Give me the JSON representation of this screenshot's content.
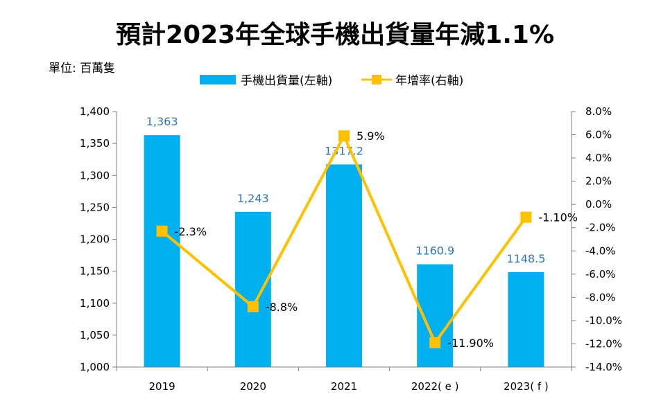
{
  "chart_data": {
    "type": "bar",
    "title": "預計2023年全球手機出貨量年減1.1%",
    "unit_label": "單位: 百萬隻",
    "categories": [
      "2019",
      "2020",
      "2021",
      "2022( e )",
      "2023( f )"
    ],
    "series": [
      {
        "name": "手機出貨量(左軸)",
        "kind": "bar",
        "axis": "left",
        "values": [
          1363,
          1243,
          1317.2,
          1160.9,
          1148.5
        ],
        "labels": [
          "1,363",
          "1,243",
          "1317.2",
          "1160.9",
          "1148.5"
        ],
        "color": "#00B0F0"
      },
      {
        "name": "年增率(右軸)",
        "kind": "line",
        "axis": "right",
        "values": [
          -2.3,
          -8.8,
          5.9,
          -11.9,
          -1.1
        ],
        "labels": [
          "-2.3%",
          "-8.8%",
          "5.9%",
          "-11.90%",
          "-1.10%"
        ],
        "color": "#FFC000"
      }
    ],
    "left_axis": {
      "ylim": [
        1000,
        1400
      ],
      "ticks": [
        "1,000",
        "1,050",
        "1,100",
        "1,150",
        "1,200",
        "1,250",
        "1,300",
        "1,350",
        "1,400"
      ]
    },
    "right_axis": {
      "ylim": [
        -14,
        8
      ],
      "ticks": [
        "-14.0%",
        "-12.0%",
        "-10.0%",
        "-8.0%",
        "-6.0%",
        "-4.0%",
        "-2.0%",
        "0.0%",
        "2.0%",
        "4.0%",
        "6.0%",
        "8.0%"
      ]
    },
    "grid": false,
    "legend_position": "top-center"
  }
}
